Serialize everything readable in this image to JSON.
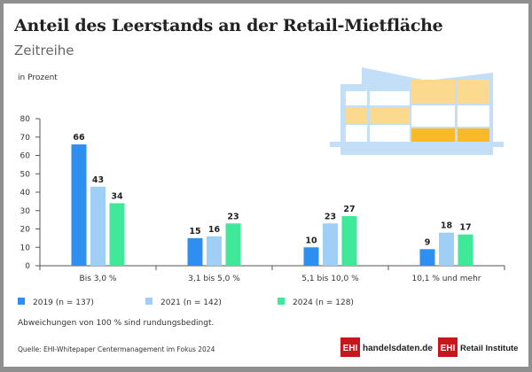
{
  "chart_data": {
    "type": "bar",
    "title": "Anteil des Leerstands an der Retail-Mietfläche",
    "subtitle": "Zeitreihe",
    "ylabel": "in Prozent",
    "xlabel": "",
    "ylim": [
      0,
      80
    ],
    "yticks": [
      "0",
      "10",
      "20",
      "30",
      "40",
      "50",
      "60",
      "70",
      "80"
    ],
    "grid": false,
    "legend_position": "bottom-left",
    "categories": [
      "Bis 3,0 %",
      "3,1 bis 5,0 %",
      "5,1 bis 10,0 %",
      "10,1 % und mehr"
    ],
    "series": [
      {
        "name": "2019 (n = 137)",
        "color": "#2e8ff0",
        "values": [
          66,
          15,
          10,
          9
        ]
      },
      {
        "name": "2021 (n = 142)",
        "color": "#9fcff7",
        "values": [
          43,
          16,
          23,
          18
        ]
      },
      {
        "name": "2024 (n = 128)",
        "color": "#40e89a",
        "values": [
          34,
          23,
          27,
          17
        ]
      }
    ]
  },
  "note": "Abweichungen von 100 % sind rundungsbedingt.",
  "source": "Quelle: EHI-Whitepaper Centermanagement im Fokus 2024",
  "logos": {
    "logo1_mark": "EHI",
    "logo1_text": "handelsdaten.de",
    "logo2_mark": "EHI",
    "logo2_text": "Retail Institute"
  },
  "colors": {
    "logo_red": "#c8161d",
    "building_blue": "#c3dff8",
    "window_light": "#fbd98e",
    "window_dark": "#fbb829"
  }
}
